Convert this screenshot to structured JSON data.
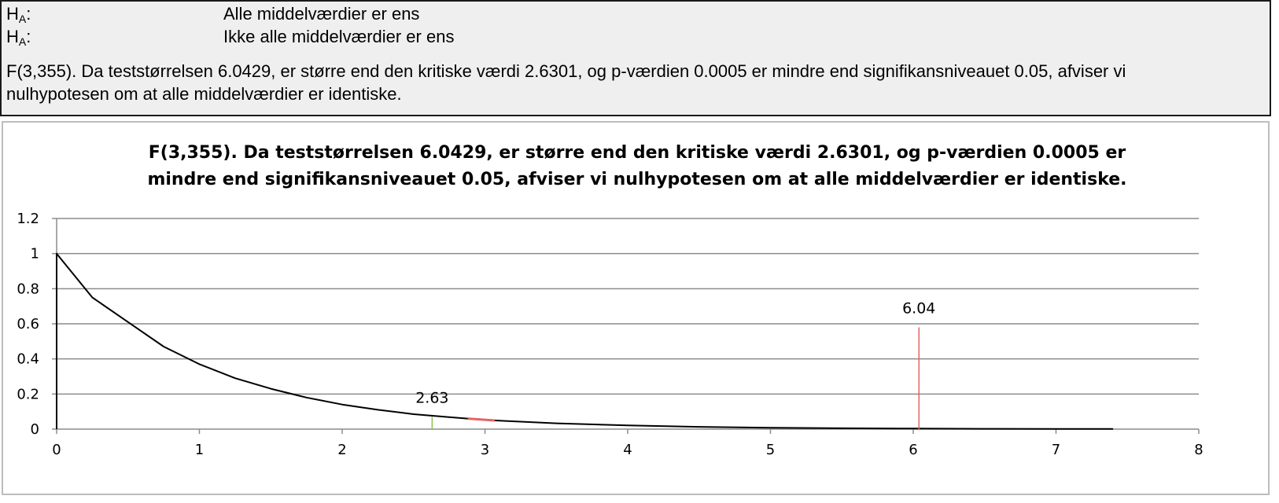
{
  "hypotheses": {
    "h0": {
      "label_main": "H",
      "label_sub": "A",
      "label_colon": ":",
      "text": "Alle middelværdier er ens"
    },
    "ha": {
      "label_main": "H",
      "label_sub": "A",
      "label_colon": ":",
      "text": "Ikke alle middelværdier er ens"
    },
    "conclusion": "F(3,355). Da teststørrelsen 6.0429, er større end den kritiske værdi 2.6301, og p-værdien 0.0005 er mindre end signifikansniveauet 0.05, afviser vi nulhypotesen om at alle middelværdier er identiske."
  },
  "chart_data": {
    "type": "line",
    "title_lines": [
      "F(3,355). Da teststørrelsen 6.0429, er større end den kritiske værdi 2.6301, og p-værdien 0.0005 er",
      "mindre end signifikansniveauet 0.05, afviser vi nulhypotesen om at alle middelværdier er identiske."
    ],
    "xlabel": "",
    "ylabel": "",
    "xlim": [
      0,
      8
    ],
    "ylim": [
      0,
      1.2
    ],
    "x_ticks": [
      0,
      1,
      2,
      3,
      4,
      5,
      6,
      7,
      8
    ],
    "y_ticks": [
      0,
      0.2,
      0.4,
      0.6,
      0.8,
      1,
      1.2
    ],
    "y_tick_labels": [
      "0",
      "0.2",
      "0.4",
      "0.6",
      "0.8",
      "1",
      "1.2"
    ],
    "grid": "horizontal",
    "legend": "none",
    "series": [
      {
        "x": [
          0,
          0.25,
          0.5,
          0.75,
          1,
          1.25,
          1.5,
          1.75,
          2,
          2.25,
          2.5,
          2.75,
          3,
          3.5,
          4,
          4.5,
          5,
          5.5,
          6,
          6.5,
          7,
          7.4
        ],
        "y": [
          1.0,
          0.75,
          0.61,
          0.47,
          0.37,
          0.29,
          0.23,
          0.18,
          0.14,
          0.11,
          0.085,
          0.068,
          0.052,
          0.033,
          0.021,
          0.013,
          0.008,
          0.005,
          0.003,
          0.002,
          0.001,
          0.001
        ],
        "color": "#000000"
      }
    ],
    "rejection_region": {
      "x": [
        2.88,
        3.07
      ],
      "color": "#e06666"
    },
    "markers": [
      {
        "x": 2.63,
        "y_top": 0.07,
        "label": "2.63",
        "color": "#8bc34a"
      },
      {
        "x": 6.04,
        "y_top": 0.58,
        "label": "6.04",
        "color": "#e06666"
      }
    ],
    "colors": {
      "grid": "#8c8c8c",
      "axis": "#8c8c8c",
      "curve": "#000000"
    }
  }
}
